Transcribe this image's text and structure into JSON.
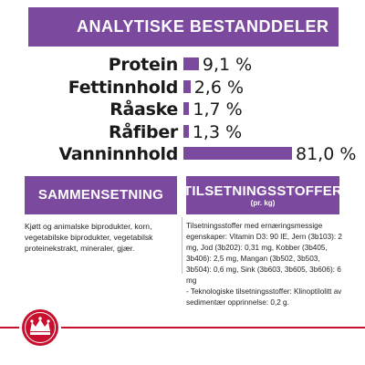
{
  "header": {
    "title": "ANALYTISKE BESTANDDELER"
  },
  "analytics": {
    "max_value": 81.0,
    "rows": [
      {
        "label": "Protein",
        "value": 9.1,
        "display": "9,1 %"
      },
      {
        "label": "Fettinnhold",
        "value": 2.6,
        "display": "2,6 %"
      },
      {
        "label": "Råaske",
        "value": 1.7,
        "display": "1,7 %"
      },
      {
        "label": "Råfiber",
        "value": 1.3,
        "display": "1,3 %"
      },
      {
        "label": "Vanninnhold",
        "value": 81.0,
        "display": "81,0 %"
      }
    ]
  },
  "composition": {
    "title": "SAMMENSETNING",
    "text": "Kjøtt og animalske biprodukter, korn, vegetabilske biprodukter, vegetabilsk proteinekstrakt, mineraler, gjær."
  },
  "additives": {
    "title": "TILSETNINGSSTOFFER",
    "subtitle": "(pr. kg)",
    "line1": "Tilsetningsstoffer med ernæringsmessige egenskaper: Vitamin D3: 90 IE, Jern (3b103): 2 mg, Jod (3b202): 0,31 mg, Kobber (3b405, 3b406): 2,5 mg, Mangan (3b502, 3b503, 3b504): 0,6 mg, Sink (3b603, 3b605, 3b606): 6 mg",
    "line2": "- Teknologiske tilsetningsstoffer: Klinoptilolitt av sedimentær opprinnelse: 0,2 g."
  },
  "colors": {
    "accent": "#7b4a9e",
    "brand_red": "#c8102e"
  },
  "icons": {
    "logo": "royal-canin-crown-logo-icon"
  }
}
